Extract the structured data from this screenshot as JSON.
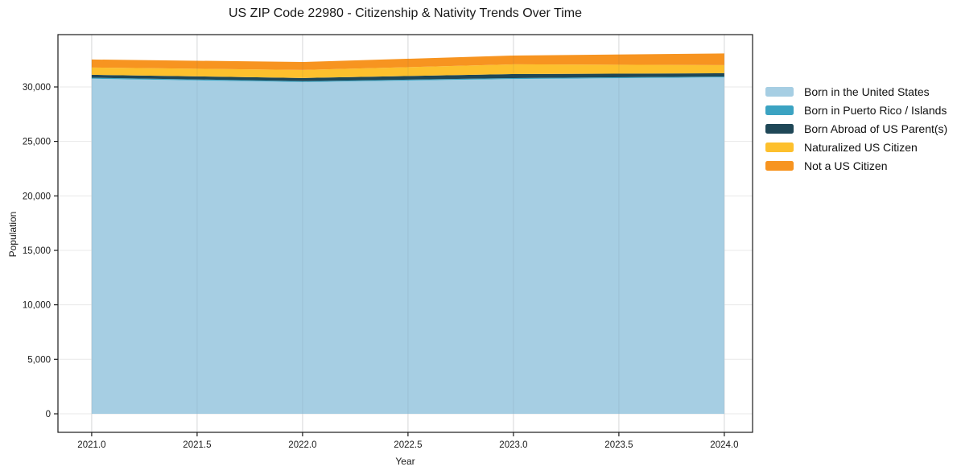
{
  "title": "US ZIP Code 22980 - Citizenship & Nativity Trends Over Time",
  "chart_data": {
    "type": "area",
    "stacked": true,
    "title": "US ZIP Code 22980 - Citizenship & Nativity Trends Over Time",
    "xlabel": "Year",
    "ylabel": "Population",
    "x": [
      2021,
      2022,
      2023,
      2024
    ],
    "series": [
      {
        "name": "Born in the United States",
        "color": "#a6cee3",
        "values": [
          30750,
          30450,
          30730,
          30880
        ]
      },
      {
        "name": "Born in Puerto Rico / Islands",
        "color": "#3ba3c2",
        "values": [
          100,
          80,
          80,
          80
        ]
      },
      {
        "name": "Born Abroad of US Parent(s)",
        "color": "#1f4757",
        "values": [
          260,
          290,
          370,
          300
        ]
      },
      {
        "name": "Naturalized US Citizen",
        "color": "#fdc02d",
        "values": [
          670,
          740,
          890,
          740
        ]
      },
      {
        "name": "Not a US Citizen",
        "color": "#f79420",
        "values": [
          740,
          730,
          810,
          1070
        ]
      }
    ],
    "xticks": {
      "values": [
        2021.0,
        2021.5,
        2022.0,
        2022.5,
        2023.0,
        2023.5,
        2024.0
      ],
      "labels": [
        "2021.0",
        "2021.5",
        "2022.0",
        "2022.5",
        "2023.0",
        "2023.5",
        "2024.0"
      ]
    },
    "yticks": {
      "values": [
        0,
        5000,
        10000,
        15000,
        20000,
        25000,
        30000
      ],
      "labels": [
        "0",
        "5,000",
        "10,000",
        "15,000",
        "20,000",
        "25,000",
        "30,000"
      ]
    },
    "xlim": [
      2020.84,
      2024.134
    ],
    "ylim": [
      -1700,
      34800
    ],
    "grid": true,
    "legend_position": "right-outside",
    "colors": {
      "grid": "#e8e8e8",
      "spine": "#1a1a1a",
      "tick_label": "#191919"
    }
  }
}
